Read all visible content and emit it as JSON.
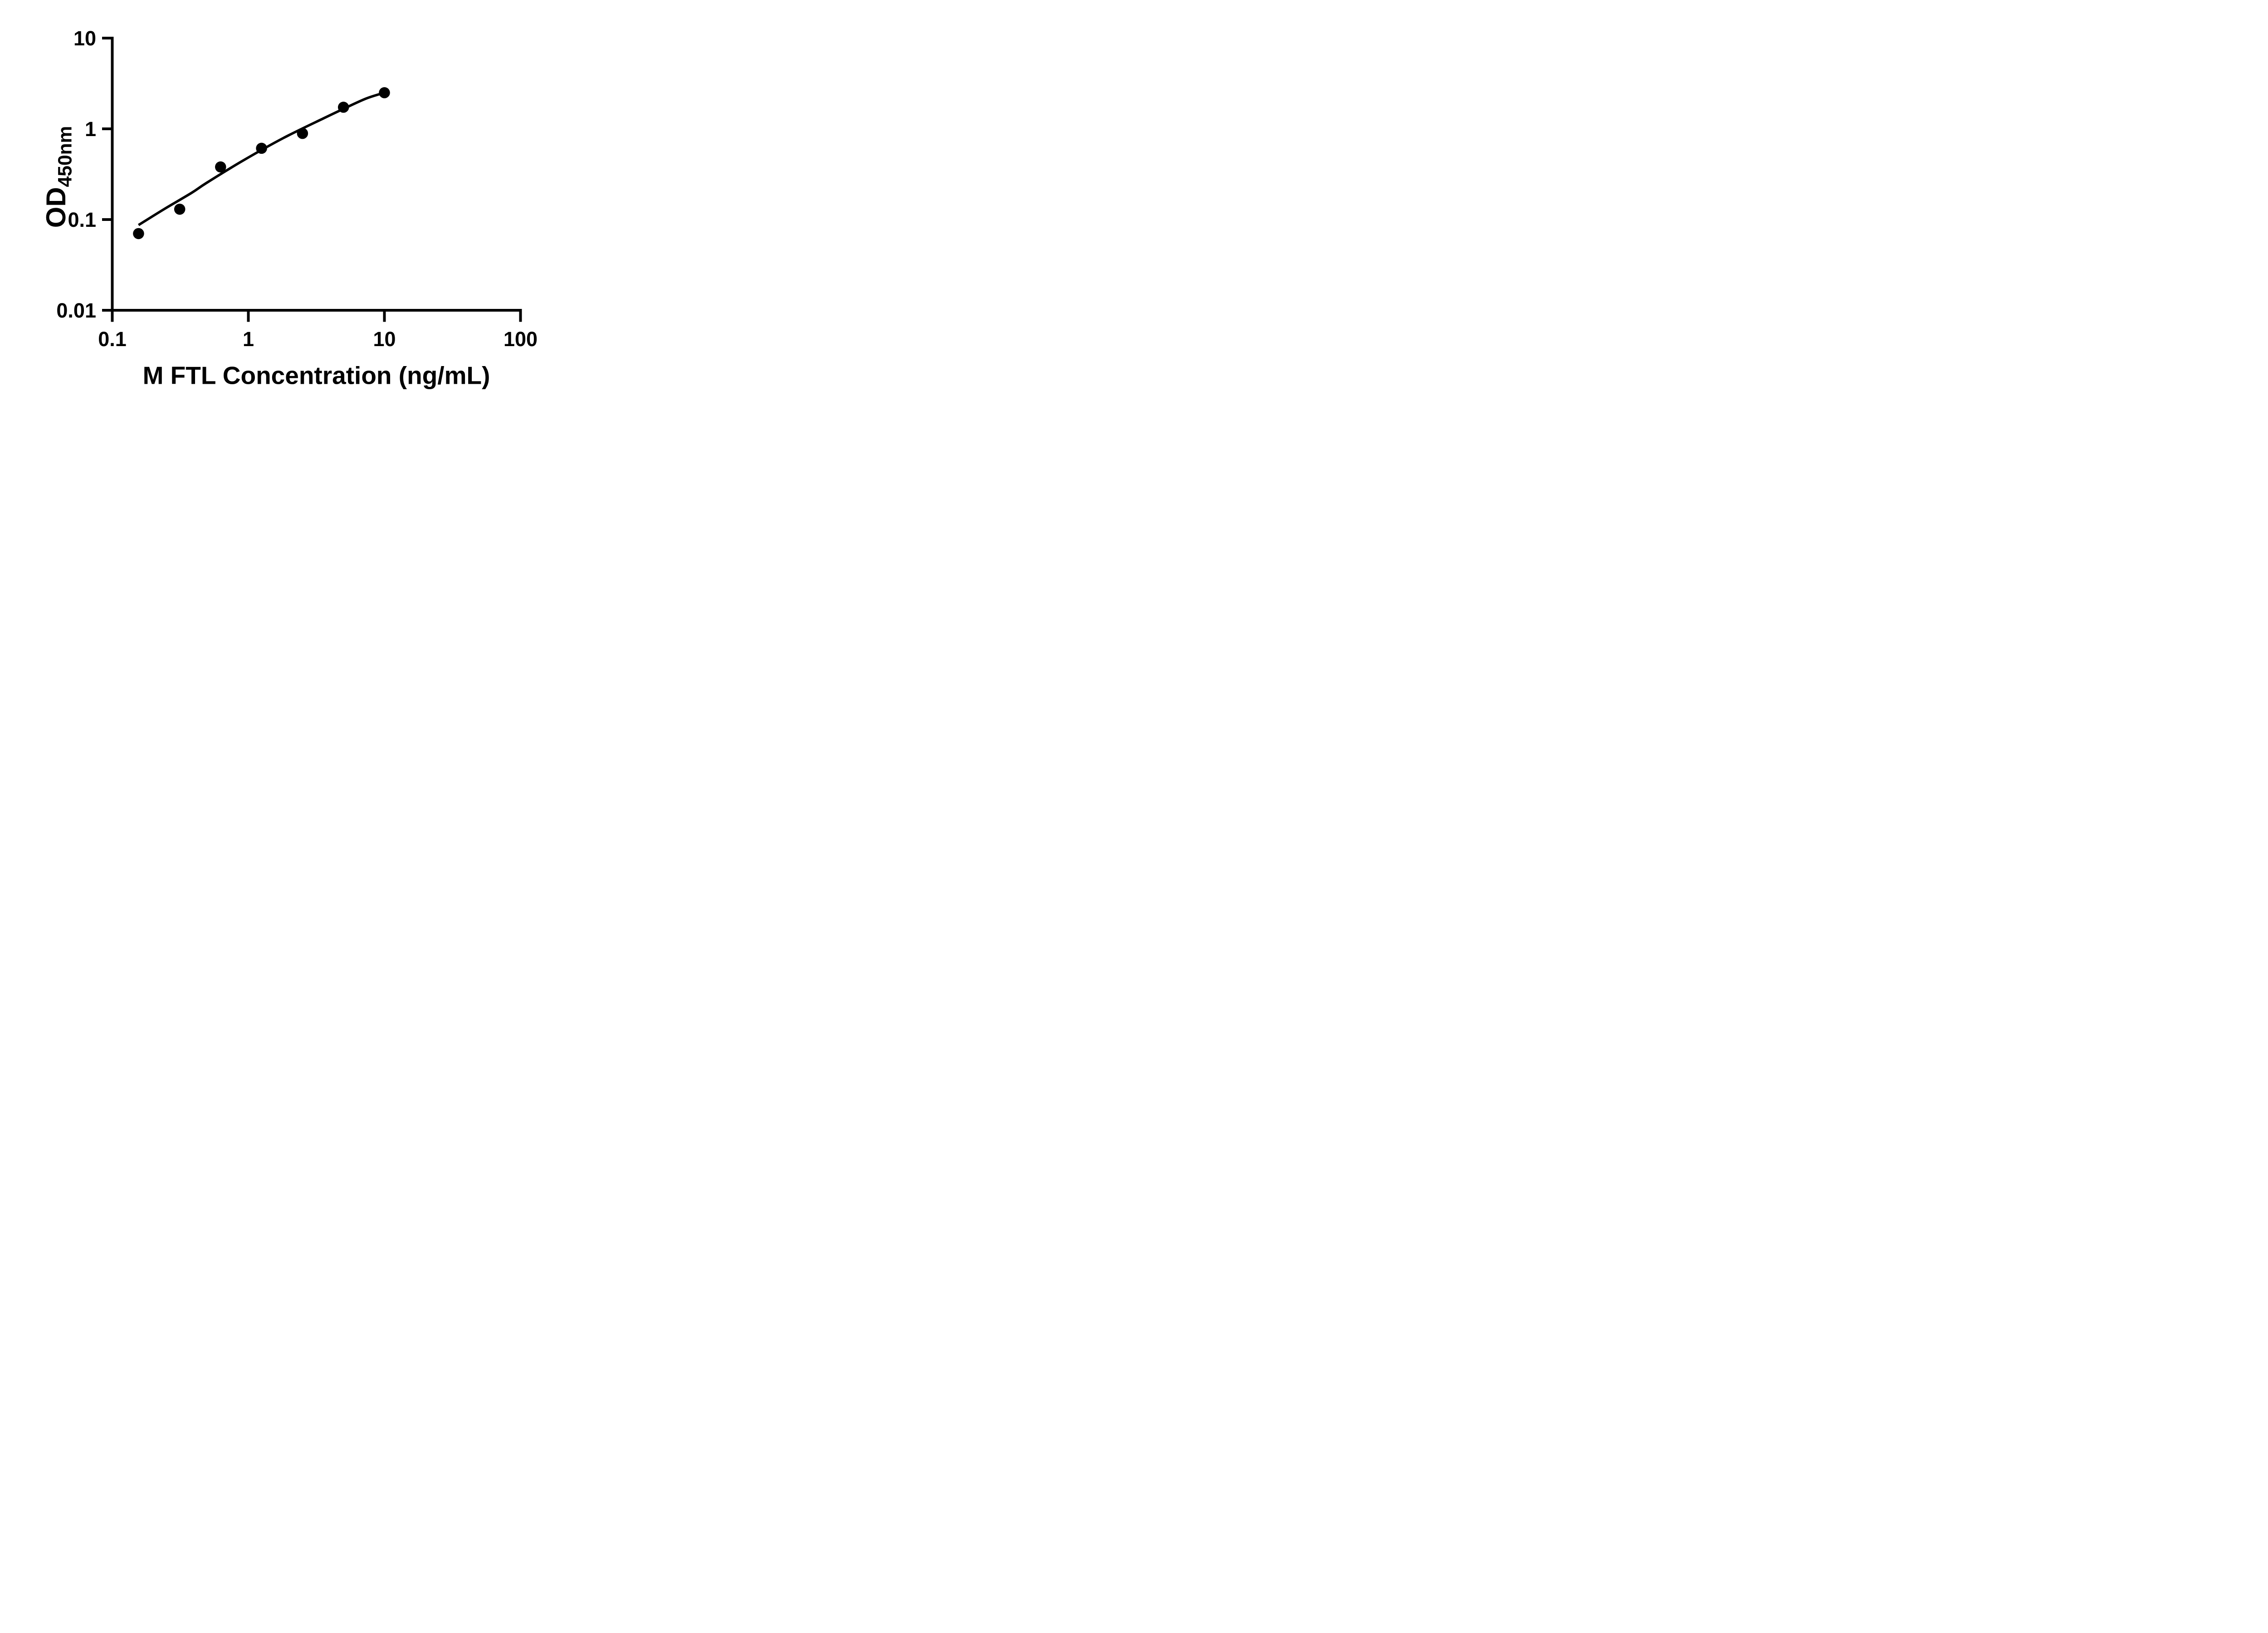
{
  "page": {
    "background": "#ffffff",
    "foreground": "#000000"
  },
  "chart_data": {
    "type": "scatter",
    "subtype": "log-log standard curve with fitted line",
    "title": "",
    "xlabel": "M FTL Concentration (ng/mL)",
    "ylabel_main": "OD",
    "ylabel_sub": "450nm",
    "x_scale": "log10",
    "y_scale": "log10",
    "xlim": [
      0.1,
      100
    ],
    "ylim": [
      0.01,
      10
    ],
    "grid": false,
    "legend": "none",
    "marker_color": "#000000",
    "line_color": "#000000",
    "x_ticks": [
      {
        "label": "0.1",
        "value": 0.1
      },
      {
        "label": "1",
        "value": 1
      },
      {
        "label": "10",
        "value": 10
      },
      {
        "label": "100",
        "value": 100
      }
    ],
    "y_ticks": [
      {
        "label": "10",
        "value": 10
      },
      {
        "label": "1",
        "value": 1
      },
      {
        "label": "0.1",
        "value": 0.1
      },
      {
        "label": "0.01",
        "value": 0.01
      }
    ],
    "series": [
      {
        "name": "standard-points",
        "type": "scatter",
        "marker": "filled-circle",
        "x": [
          0.156,
          0.313,
          0.625,
          1.25,
          2.5,
          5,
          10
        ],
        "y": [
          0.07,
          0.13,
          0.38,
          0.61,
          0.89,
          1.73,
          2.5
        ]
      },
      {
        "name": "fit-curve",
        "type": "line",
        "x": [
          0.156,
          0.242,
          0.383,
          0.492,
          0.908,
          1.81,
          3.62,
          5.0,
          7.36,
          10
        ],
        "y": [
          0.087,
          0.131,
          0.197,
          0.253,
          0.444,
          0.792,
          1.318,
          1.66,
          2.16,
          2.5
        ]
      }
    ]
  }
}
